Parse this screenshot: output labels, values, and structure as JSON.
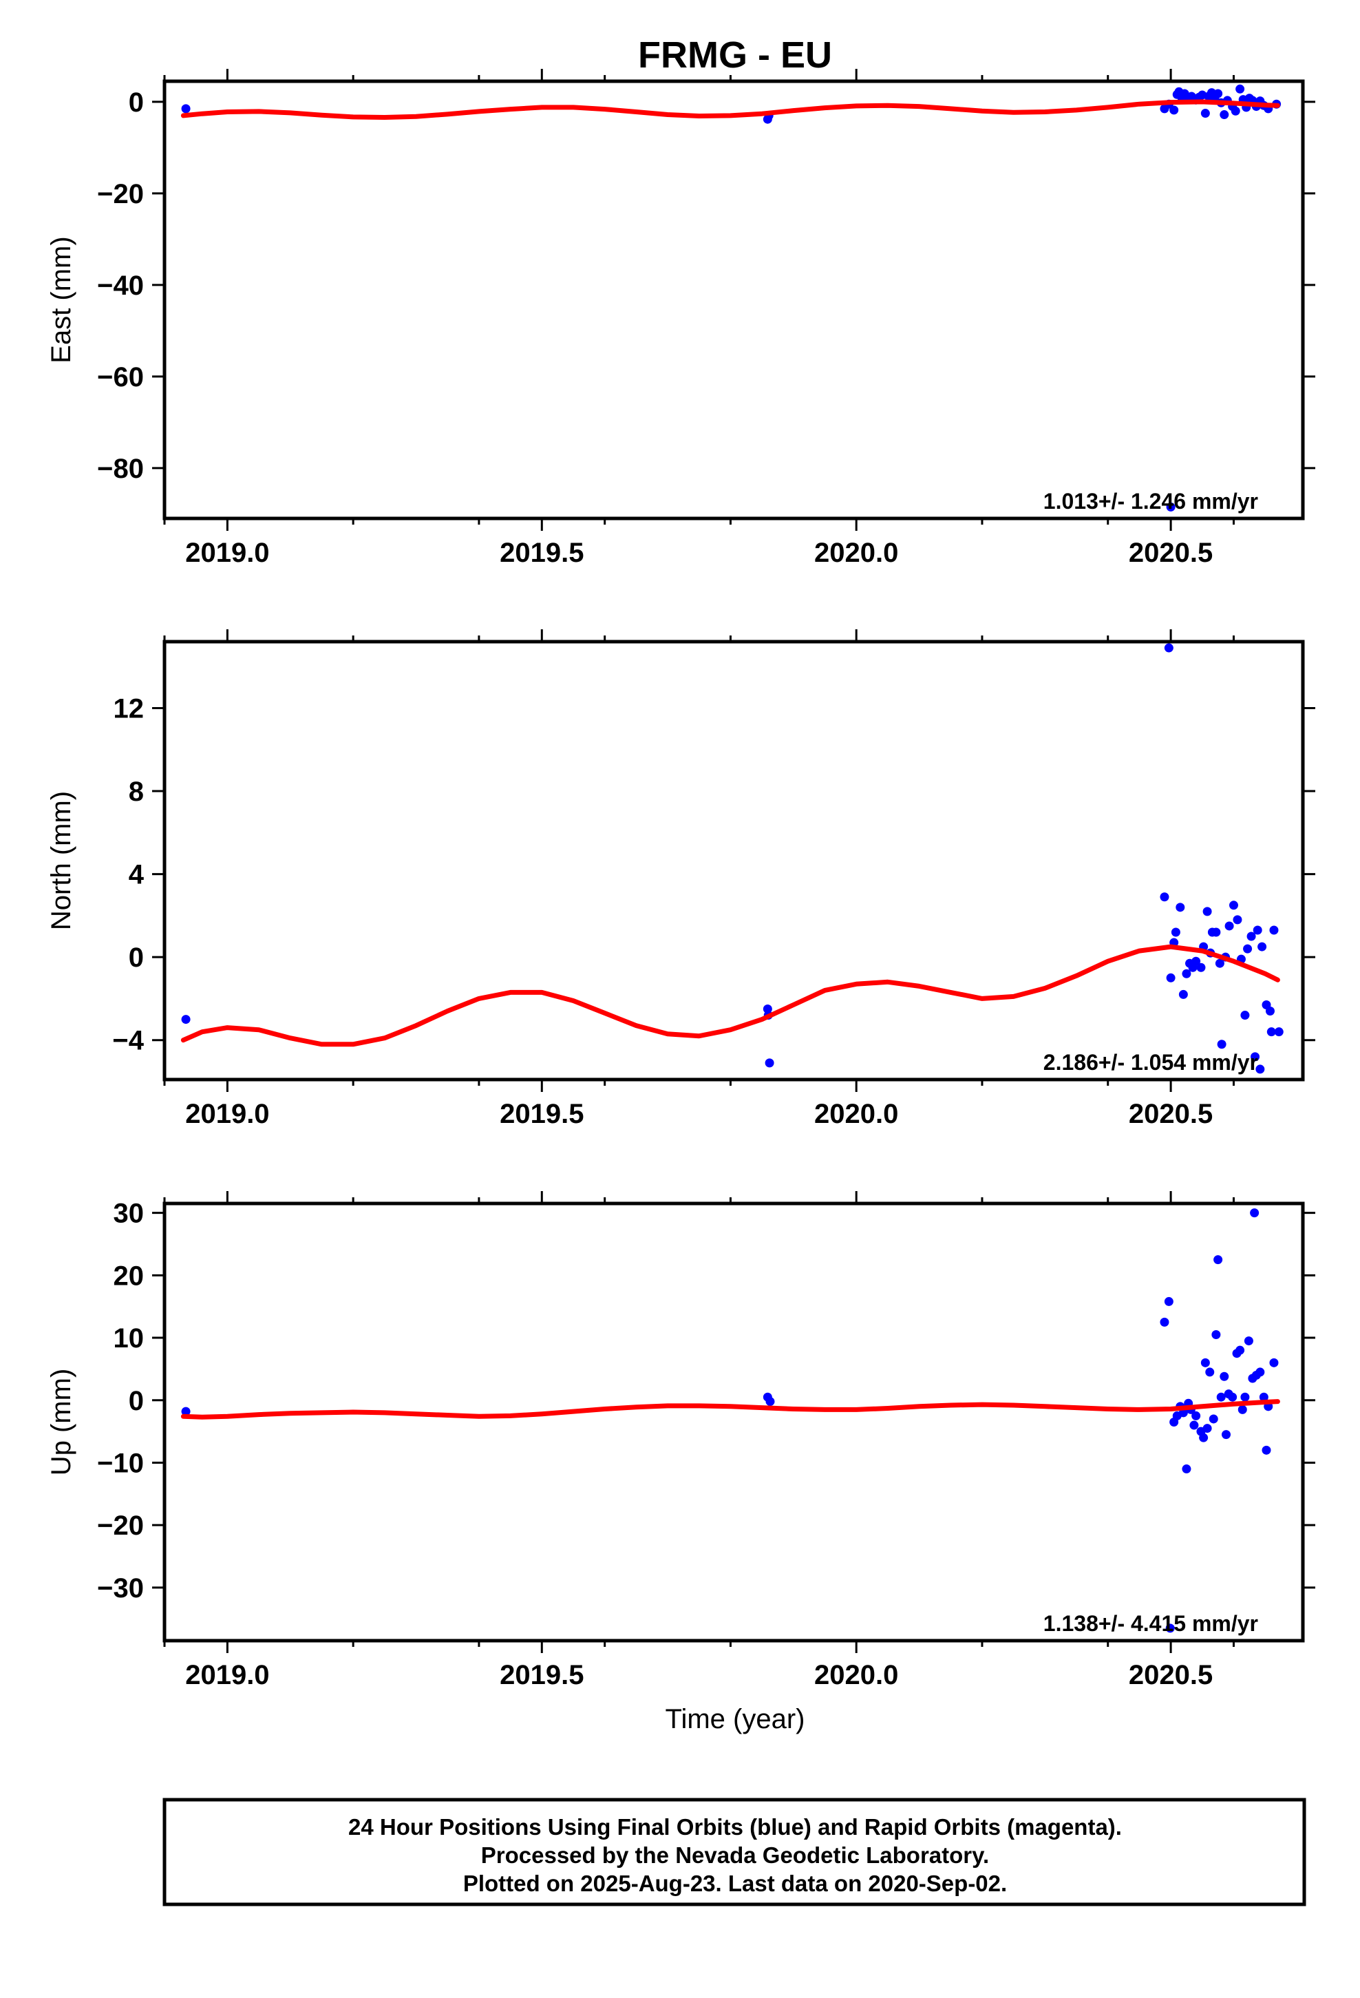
{
  "title": "FRMG - EU",
  "x_axis_label": "Time (year)",
  "footer": {
    "line1": "24 Hour Positions Using Final Orbits (blue) and Rapid Orbits (magenta).",
    "line2": "Processed by the Nevada Geodetic Laboratory.",
    "line3": "Plotted on 2025-Aug-23. Last data on 2020-Sep-02."
  },
  "colors": {
    "final_orbits": "#0000ff",
    "model_fit": "#ff0000",
    "frame": "#000000"
  },
  "chart_data": [
    {
      "type": "scatter",
      "name": "east",
      "ylabel": "East (mm)",
      "rate_label": "1.013+/- 1.246 mm/yr",
      "xlim": [
        2018.9,
        2020.71
      ],
      "ylim": [
        -91,
        4.5
      ],
      "xticks": [
        2019.0,
        2019.5,
        2020.0,
        2020.5
      ],
      "xtick_labels": [
        "2019.0",
        "2019.5",
        "2020.0",
        "2020.5"
      ],
      "yticks": [
        -80,
        -60,
        -40,
        -20,
        0
      ],
      "ytick_labels": [
        "−80",
        "−60",
        "−40",
        "−20",
        "0"
      ],
      "points": [
        [
          2018.934,
          -1.5
        ],
        [
          2019.859,
          -3.8
        ],
        [
          2019.861,
          -3.0
        ],
        [
          2020.49,
          -1.5
        ],
        [
          2020.497,
          -0.5
        ],
        [
          2020.5,
          -88.5
        ],
        [
          2020.505,
          -1.8
        ],
        [
          2020.51,
          1.6
        ],
        [
          2020.513,
          2.2
        ],
        [
          2020.518,
          0.5
        ],
        [
          2020.522,
          1.8
        ],
        [
          2020.528,
          0.8
        ],
        [
          2020.533,
          1.2
        ],
        [
          2020.54,
          0.4
        ],
        [
          2020.545,
          1.0
        ],
        [
          2020.55,
          1.5
        ],
        [
          2020.555,
          -2.5
        ],
        [
          2020.56,
          1.2
        ],
        [
          2020.565,
          2.0
        ],
        [
          2020.57,
          0.6
        ],
        [
          2020.575,
          1.8
        ],
        [
          2020.58,
          -0.2
        ],
        [
          2020.585,
          -2.8
        ],
        [
          2020.59,
          0.3
        ],
        [
          2020.598,
          -1.0
        ],
        [
          2020.603,
          -2.0
        ],
        [
          2020.61,
          2.8
        ],
        [
          2020.615,
          0.5
        ],
        [
          2020.62,
          -1.2
        ],
        [
          2020.625,
          0.8
        ],
        [
          2020.63,
          0.3
        ],
        [
          2020.636,
          -1.0
        ],
        [
          2020.642,
          0.2
        ],
        [
          2020.648,
          -0.8
        ],
        [
          2020.655,
          -1.5
        ],
        [
          2020.668,
          -0.5
        ]
      ],
      "model": {
        "x": [
          2018.93,
          2018.96,
          2019.0,
          2019.05,
          2019.1,
          2019.15,
          2019.2,
          2019.25,
          2019.3,
          2019.35,
          2019.4,
          2019.45,
          2019.5,
          2019.55,
          2019.6,
          2019.65,
          2019.7,
          2019.75,
          2019.8,
          2019.85,
          2019.9,
          2019.95,
          2020.0,
          2020.05,
          2020.1,
          2020.15,
          2020.2,
          2020.25,
          2020.3,
          2020.35,
          2020.4,
          2020.45,
          2020.5,
          2020.55,
          2020.6,
          2020.65,
          2020.67
        ],
        "y": [
          -3.0,
          -2.6,
          -2.2,
          -2.1,
          -2.4,
          -2.9,
          -3.3,
          -3.4,
          -3.2,
          -2.7,
          -2.1,
          -1.6,
          -1.2,
          -1.2,
          -1.6,
          -2.2,
          -2.8,
          -3.1,
          -3.0,
          -2.6,
          -1.9,
          -1.3,
          -0.9,
          -0.8,
          -1.0,
          -1.5,
          -2.0,
          -2.3,
          -2.2,
          -1.8,
          -1.2,
          -0.5,
          -0.1,
          0.0,
          -0.3,
          -0.7,
          -0.8
        ]
      }
    },
    {
      "type": "scatter",
      "name": "north",
      "ylabel": "North (mm)",
      "rate_label": "2.186+/- 1.054 mm/yr",
      "xlim": [
        2018.9,
        2020.71
      ],
      "ylim": [
        -5.9,
        15.2
      ],
      "xticks": [
        2019.0,
        2019.5,
        2020.0,
        2020.5
      ],
      "xtick_labels": [
        "2019.0",
        "2019.5",
        "2020.0",
        "2020.5"
      ],
      "yticks": [
        -4,
        0,
        4,
        8,
        12
      ],
      "ytick_labels": [
        "−4",
        "0",
        "4",
        "8",
        "12"
      ],
      "points": [
        [
          2018.934,
          -3.0
        ],
        [
          2019.859,
          -2.5
        ],
        [
          2019.86,
          -2.8
        ],
        [
          2019.862,
          -5.1
        ],
        [
          2020.49,
          2.9
        ],
        [
          2020.497,
          14.9
        ],
        [
          2020.5,
          -1.0
        ],
        [
          2020.505,
          0.7
        ],
        [
          2020.508,
          1.2
        ],
        [
          2020.515,
          2.4
        ],
        [
          2020.52,
          -1.8
        ],
        [
          2020.525,
          -0.8
        ],
        [
          2020.53,
          -0.3
        ],
        [
          2020.535,
          -0.5
        ],
        [
          2020.54,
          -0.2
        ],
        [
          2020.548,
          -0.5
        ],
        [
          2020.552,
          0.5
        ],
        [
          2020.558,
          2.2
        ],
        [
          2020.563,
          0.2
        ],
        [
          2020.566,
          1.2
        ],
        [
          2020.572,
          1.2
        ],
        [
          2020.578,
          -0.3
        ],
        [
          2020.581,
          -4.2
        ],
        [
          2020.587,
          0.0
        ],
        [
          2020.593,
          1.5
        ],
        [
          2020.6,
          2.5
        ],
        [
          2020.606,
          1.8
        ],
        [
          2020.612,
          -0.1
        ],
        [
          2020.618,
          -2.8
        ],
        [
          2020.622,
          0.4
        ],
        [
          2020.628,
          1.0
        ],
        [
          2020.634,
          -4.8
        ],
        [
          2020.638,
          1.3
        ],
        [
          2020.642,
          -5.4
        ],
        [
          2020.645,
          0.5
        ],
        [
          2020.652,
          -2.3
        ],
        [
          2020.658,
          -2.6
        ],
        [
          2020.66,
          -3.6
        ],
        [
          2020.664,
          1.3
        ],
        [
          2020.672,
          -3.6
        ]
      ],
      "model": {
        "x": [
          2018.93,
          2018.96,
          2019.0,
          2019.05,
          2019.1,
          2019.15,
          2019.2,
          2019.25,
          2019.3,
          2019.35,
          2019.4,
          2019.45,
          2019.5,
          2019.55,
          2019.6,
          2019.65,
          2019.7,
          2019.75,
          2019.8,
          2019.85,
          2019.9,
          2019.95,
          2020.0,
          2020.05,
          2020.1,
          2020.15,
          2020.2,
          2020.25,
          2020.3,
          2020.35,
          2020.4,
          2020.45,
          2020.5,
          2020.55,
          2020.6,
          2020.65,
          2020.67
        ],
        "y": [
          -4.0,
          -3.6,
          -3.4,
          -3.5,
          -3.9,
          -4.2,
          -4.2,
          -3.9,
          -3.3,
          -2.6,
          -2.0,
          -1.7,
          -1.7,
          -2.1,
          -2.7,
          -3.3,
          -3.7,
          -3.8,
          -3.5,
          -3.0,
          -2.3,
          -1.6,
          -1.3,
          -1.2,
          -1.4,
          -1.7,
          -2.0,
          -1.9,
          -1.5,
          -0.9,
          -0.2,
          0.3,
          0.5,
          0.3,
          -0.2,
          -0.8,
          -1.1
        ]
      }
    },
    {
      "type": "scatter",
      "name": "up",
      "ylabel": "Up (mm)",
      "rate_label": "1.138+/- 4.415 mm/yr",
      "xlim": [
        2018.9,
        2020.71
      ],
      "ylim": [
        -38.5,
        31.5
      ],
      "xticks": [
        2019.0,
        2019.5,
        2020.0,
        2020.5
      ],
      "xtick_labels": [
        "2019.0",
        "2019.5",
        "2020.0",
        "2020.5"
      ],
      "yticks": [
        -30,
        -20,
        -10,
        0,
        10,
        20,
        30
      ],
      "ytick_labels": [
        "−30",
        "−20",
        "−10",
        "0",
        "10",
        "20",
        "30"
      ],
      "points": [
        [
          2018.934,
          -1.8
        ],
        [
          2019.859,
          0.5
        ],
        [
          2019.863,
          -0.2
        ],
        [
          2020.49,
          12.5
        ],
        [
          2020.497,
          15.8
        ],
        [
          2020.499,
          -36.5
        ],
        [
          2020.505,
          -3.5
        ],
        [
          2020.51,
          -2.5
        ],
        [
          2020.515,
          -1.0
        ],
        [
          2020.52,
          -2.0
        ],
        [
          2020.525,
          -11.0
        ],
        [
          2020.528,
          -0.5
        ],
        [
          2020.532,
          -1.5
        ],
        [
          2020.537,
          -4.0
        ],
        [
          2020.54,
          -2.5
        ],
        [
          2020.548,
          -5.0
        ],
        [
          2020.552,
          -6.0
        ],
        [
          2020.555,
          6.0
        ],
        [
          2020.558,
          -4.5
        ],
        [
          2020.562,
          4.5
        ],
        [
          2020.568,
          -3.0
        ],
        [
          2020.572,
          10.5
        ],
        [
          2020.575,
          22.5
        ],
        [
          2020.58,
          0.5
        ],
        [
          2020.585,
          3.8
        ],
        [
          2020.588,
          -5.5
        ],
        [
          2020.592,
          1.0
        ],
        [
          2020.598,
          0.5
        ],
        [
          2020.605,
          7.5
        ],
        [
          2020.61,
          8.0
        ],
        [
          2020.614,
          -1.5
        ],
        [
          2020.618,
          0.5
        ],
        [
          2020.624,
          9.5
        ],
        [
          2020.63,
          3.5
        ],
        [
          2020.633,
          30.0
        ],
        [
          2020.636,
          4.0
        ],
        [
          2020.642,
          4.5
        ],
        [
          2020.648,
          0.5
        ],
        [
          2020.652,
          -8.0
        ],
        [
          2020.655,
          -1.0
        ],
        [
          2020.664,
          6.0
        ]
      ],
      "model": {
        "x": [
          2018.93,
          2018.96,
          2019.0,
          2019.05,
          2019.1,
          2019.15,
          2019.2,
          2019.25,
          2019.3,
          2019.35,
          2019.4,
          2019.45,
          2019.5,
          2019.55,
          2019.6,
          2019.65,
          2019.7,
          2019.75,
          2019.8,
          2019.85,
          2019.9,
          2019.95,
          2020.0,
          2020.05,
          2020.1,
          2020.15,
          2020.2,
          2020.25,
          2020.3,
          2020.35,
          2020.4,
          2020.45,
          2020.5,
          2020.55,
          2020.6,
          2020.65,
          2020.67
        ],
        "y": [
          -2.6,
          -2.7,
          -2.6,
          -2.3,
          -2.1,
          -2.0,
          -1.9,
          -2.0,
          -2.2,
          -2.4,
          -2.6,
          -2.5,
          -2.2,
          -1.8,
          -1.4,
          -1.1,
          -0.9,
          -0.9,
          -1.0,
          -1.2,
          -1.4,
          -1.5,
          -1.5,
          -1.3,
          -1.0,
          -0.8,
          -0.7,
          -0.8,
          -1.0,
          -1.2,
          -1.4,
          -1.5,
          -1.4,
          -1.0,
          -0.6,
          -0.3,
          -0.2
        ]
      }
    }
  ]
}
